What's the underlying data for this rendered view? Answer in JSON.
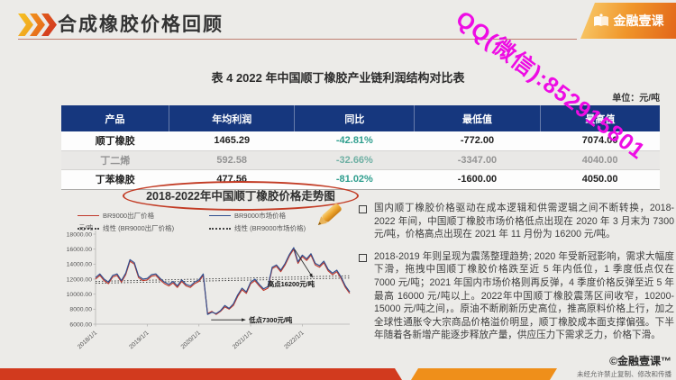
{
  "header": {
    "title": "合成橡胶价格回顾",
    "watermark": "QQ(微信):852915801",
    "logo_text": "金融壹课"
  },
  "table": {
    "title": "表 4 2022 年中国顺丁橡胶产业链利润结构对比表",
    "unit_label": "单位：元/吨",
    "columns": [
      "产品",
      "年均利润",
      "同比",
      "最低值",
      "最高值"
    ],
    "rows": [
      {
        "product": "顺丁橡胶",
        "avg_profit": "1465.29",
        "yoy": "-42.81%",
        "min": "-772.00",
        "max": "7074.00"
      },
      {
        "product": "丁二烯",
        "avg_profit": "592.58",
        "yoy": "-32.66%",
        "min": "-3347.00",
        "max": "4040.00"
      },
      {
        "product": "丁苯橡胶",
        "avg_profit": "477.56",
        "yoy": "-81.02%",
        "min": "-1600.00",
        "max": "4050.00"
      }
    ]
  },
  "chart_data": {
    "type": "line",
    "title": "2018-2022年中国顺丁橡胶价格走势图",
    "unit_label": "元/吨",
    "x_tick_labels": [
      "2018/1/1",
      "2019/1/1",
      "2020/1/1",
      "2021/1/1",
      "2022/1/1"
    ],
    "y_ticks": [
      18000,
      16000,
      14000,
      12000,
      10000,
      8000,
      6000
    ],
    "ylim": [
      6000,
      18000
    ],
    "legend_position": "top",
    "grid": false,
    "series": [
      {
        "name": "BR9000出厂价格",
        "color": "#c0392b",
        "values": [
          12000,
          12500,
          11800,
          11400,
          12300,
          12500,
          11600,
          12600,
          14400,
          14000,
          12200,
          11800,
          11900,
          12400,
          12500,
          11900,
          11400,
          11100,
          11500,
          10900,
          11700,
          11100,
          10900,
          11400,
          11700,
          12500,
          7400,
          7700,
          7300,
          7700,
          8300,
          8000,
          8500,
          9700,
          10600,
          10100,
          11400,
          11800,
          11100,
          10500,
          10800,
          13400,
          13700,
          13000,
          13900,
          15100,
          16000,
          14100,
          15000,
          14500,
          15200,
          13900,
          13600,
          14200,
          13100,
          12600,
          13000,
          12100,
          10900,
          10100
        ]
      },
      {
        "name": "BR9000市场价格",
        "color": "#2e4d8e",
        "values": [
          12200,
          12700,
          12000,
          11600,
          12500,
          12700,
          11800,
          12800,
          14600,
          14200,
          12400,
          12000,
          12100,
          12600,
          12700,
          12100,
          11600,
          11300,
          11700,
          11100,
          11900,
          11300,
          11100,
          11600,
          11900,
          12700,
          7300,
          7600,
          7400,
          7800,
          8500,
          8100,
          8700,
          9900,
          10800,
          10300,
          11600,
          12000,
          11300,
          10700,
          11000,
          13600,
          13900,
          13200,
          14100,
          15300,
          16200,
          14300,
          15200,
          14700,
          15400,
          14100,
          13800,
          14400,
          13300,
          12800,
          13200,
          12300,
          11100,
          10300
        ]
      }
    ],
    "trendlines": [
      {
        "name": "线性 (BR9000出厂价格)",
        "start": 11450,
        "end": 12150
      },
      {
        "name": "线性 (BR9000市场价格)",
        "start": 11700,
        "end": 12450
      }
    ],
    "annotations": {
      "high": {
        "label": "高点16200元/吨",
        "index": 46,
        "value": 16200
      },
      "low": {
        "label": "低点7300元/吨",
        "index": 26,
        "value": 7300
      }
    }
  },
  "notes": {
    "bullets": [
      "国内顺丁橡胶价格驱动在成本逻辑和供需逻辑之间不断转换，2018-2022 年间，中国顺丁橡胶市场价格低点出现在 2020 年 3 月末为 7300 元/吨，价格高点出现在 2021 年 11 月份为 16200 元/吨。",
      "2018-2019 年则呈现为震荡整理趋势; 2020 年受新冠影响，需求大幅度下滑，拖拽中国顺丁橡胶价格跌至近 5 年内低位，1 季度低点仅在 7000 元/吨；2021 年国内市场价格则再反弹，4 季度价格反弹至近 5 年最高 16000 元/吨以上。2022年中国顺丁橡胶震荡区间收窄，10200-15000 元/吨之间，。原油不断刷新历史高位，推高原料价格上行，加之全球性通胀令大宗商品价格溢价明显，顺丁橡胶成本面支撑偏强。下半年随着各新增产能逐步释放产量，供应压力下需求乏力，价格下滑。"
    ]
  },
  "footer": {
    "copyright": "©金融壹课™",
    "notice": "未经允许禁止复制、修改和传播"
  },
  "colors": {
    "accent_red": "#d23a1e",
    "accent_orange": "#ef8f1a",
    "header_navy": "#16377e",
    "yoy_green": "#2f9e8e",
    "watermark_magenta": "#ee0ce4",
    "series_red": "#c0392b",
    "series_blue": "#2e4d8e"
  }
}
